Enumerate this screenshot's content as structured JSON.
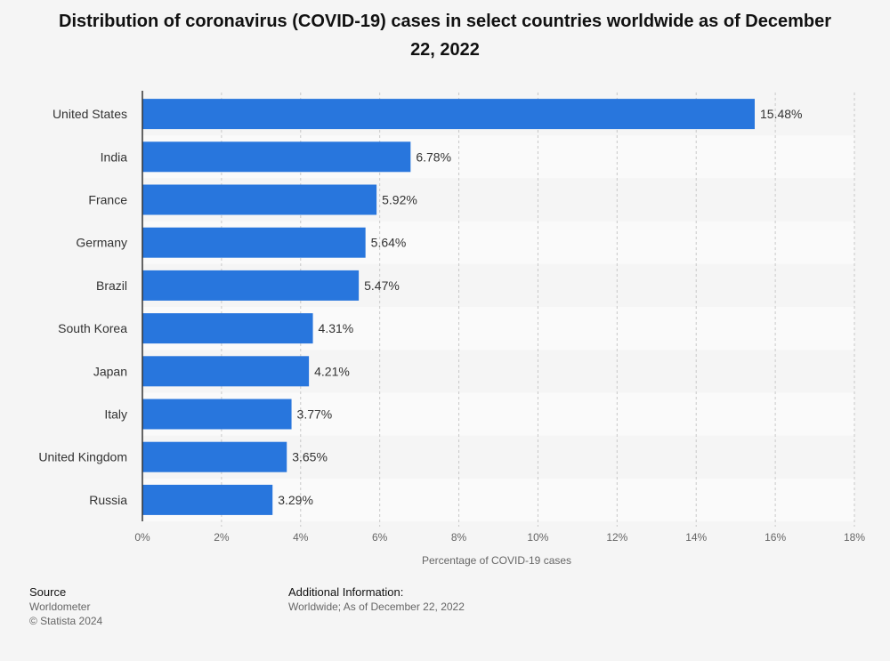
{
  "chart_data": {
    "type": "bar",
    "orientation": "horizontal",
    "title": "Distribution of coronavirus (COVID-19) cases in select countries worldwide as of December 22, 2022",
    "categories": [
      "United States",
      "India",
      "France",
      "Germany",
      "Brazil",
      "South Korea",
      "Japan",
      "Italy",
      "United Kingdom",
      "Russia"
    ],
    "values": [
      15.48,
      6.78,
      5.92,
      5.64,
      5.47,
      4.31,
      4.21,
      3.77,
      3.65,
      3.29
    ],
    "value_labels": [
      "15.48%",
      "6.78%",
      "5.92%",
      "5.64%",
      "5.47%",
      "4.31%",
      "4.21%",
      "3.77%",
      "3.65%",
      "3.29%"
    ],
    "xlabel": "Percentage of COVID-19 cases",
    "ylabel": "",
    "xlim": [
      0,
      18
    ],
    "xticks": [
      0,
      2,
      4,
      6,
      8,
      10,
      12,
      14,
      16,
      18
    ],
    "xtick_labels": [
      "0%",
      "2%",
      "4%",
      "6%",
      "8%",
      "10%",
      "12%",
      "14%",
      "16%",
      "18%"
    ],
    "grid": true,
    "bar_color": "#2876dd"
  },
  "footer": {
    "source_heading": "Source",
    "source_name": "Worldometer",
    "copyright": "© Statista 2024",
    "info_heading": "Additional Information:",
    "info_text": "Worldwide; As of December 22, 2022"
  }
}
